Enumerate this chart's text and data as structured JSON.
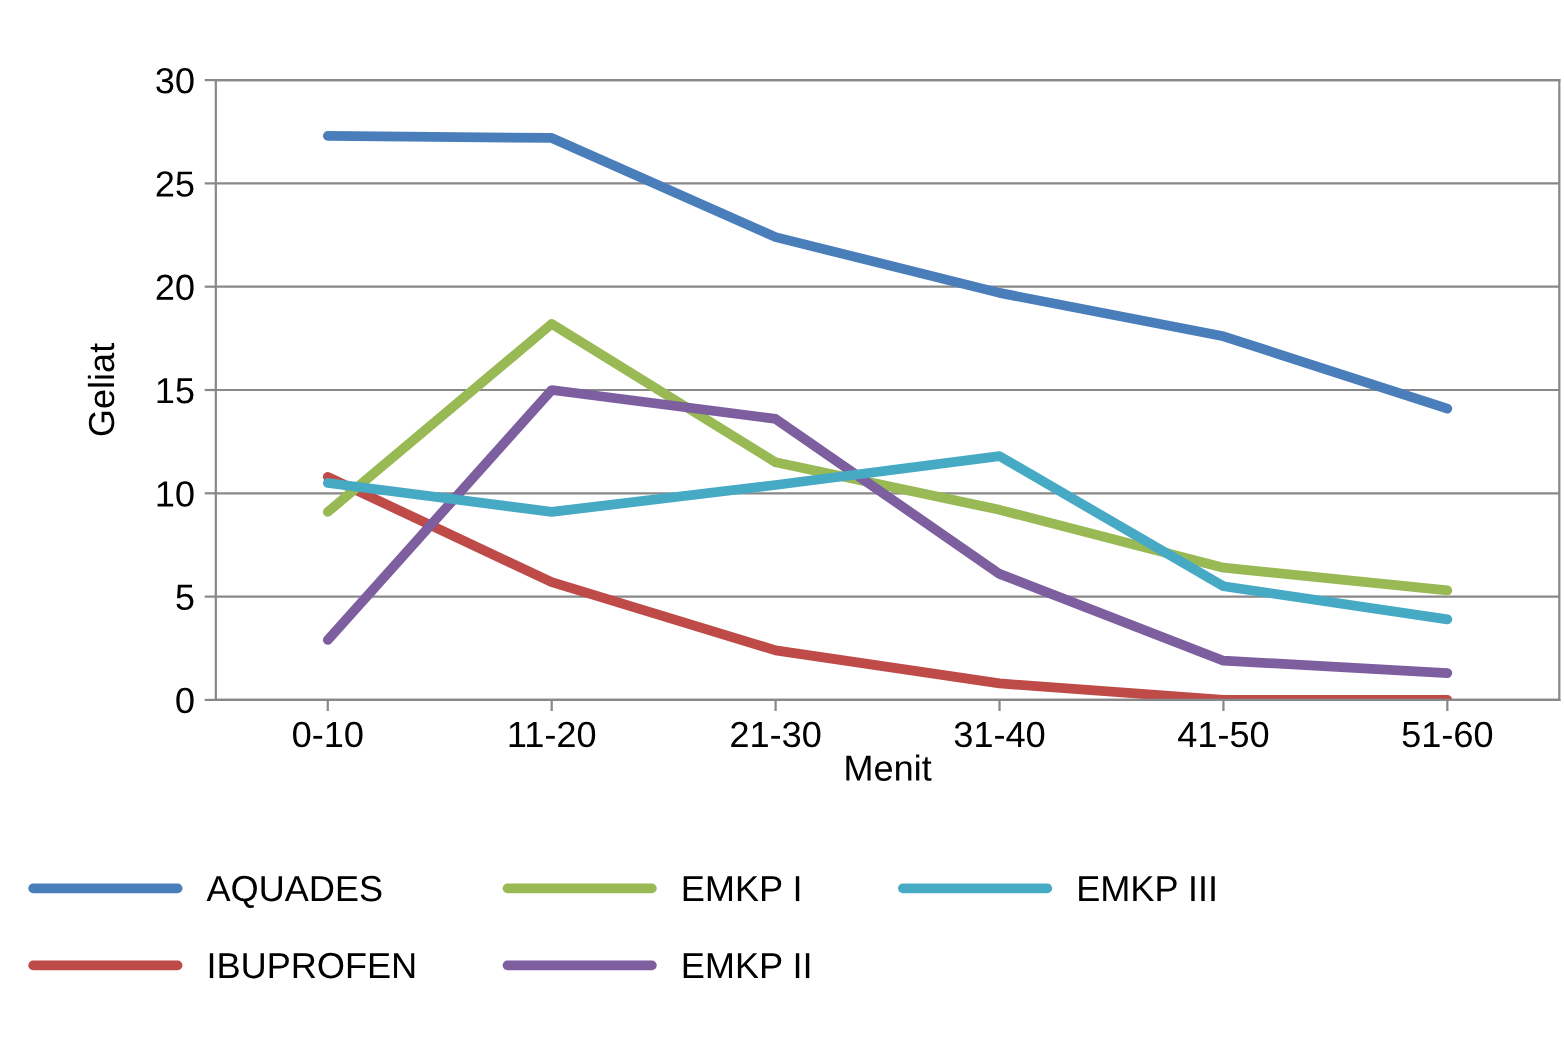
{
  "chart_data": {
    "type": "line",
    "xlabel": "Menit",
    "ylabel": "Geliat",
    "categories": [
      "0-10",
      "11-20",
      "21-30",
      "31-40",
      "41-50",
      "51-60"
    ],
    "series": [
      {
        "name": "AQUADES",
        "color": "#4a7ebb",
        "values": [
          27.3,
          27.2,
          22.4,
          19.7,
          17.6,
          14.1
        ]
      },
      {
        "name": "IBUPROFEN",
        "color": "#be4b48",
        "values": [
          10.8,
          5.7,
          2.4,
          0.8,
          0,
          0
        ]
      },
      {
        "name": "EMKP I",
        "color": "#98b954",
        "values": [
          9.1,
          18.2,
          11.5,
          9.2,
          6.4,
          5.3
        ]
      },
      {
        "name": "EMKP II",
        "color": "#7d5fa0",
        "values": [
          2.9,
          15.0,
          13.6,
          6.1,
          1.9,
          1.3
        ]
      },
      {
        "name": "EMKP III",
        "color": "#46aac5",
        "values": [
          10.5,
          9.1,
          10.4,
          11.8,
          5.5,
          3.9
        ]
      }
    ],
    "ylim": [
      0,
      30
    ],
    "yticks": [
      0,
      5,
      10,
      15,
      20,
      25,
      30
    ],
    "grid": "y",
    "legend": "bottom",
    "marker": "none",
    "line_style": "solid"
  }
}
